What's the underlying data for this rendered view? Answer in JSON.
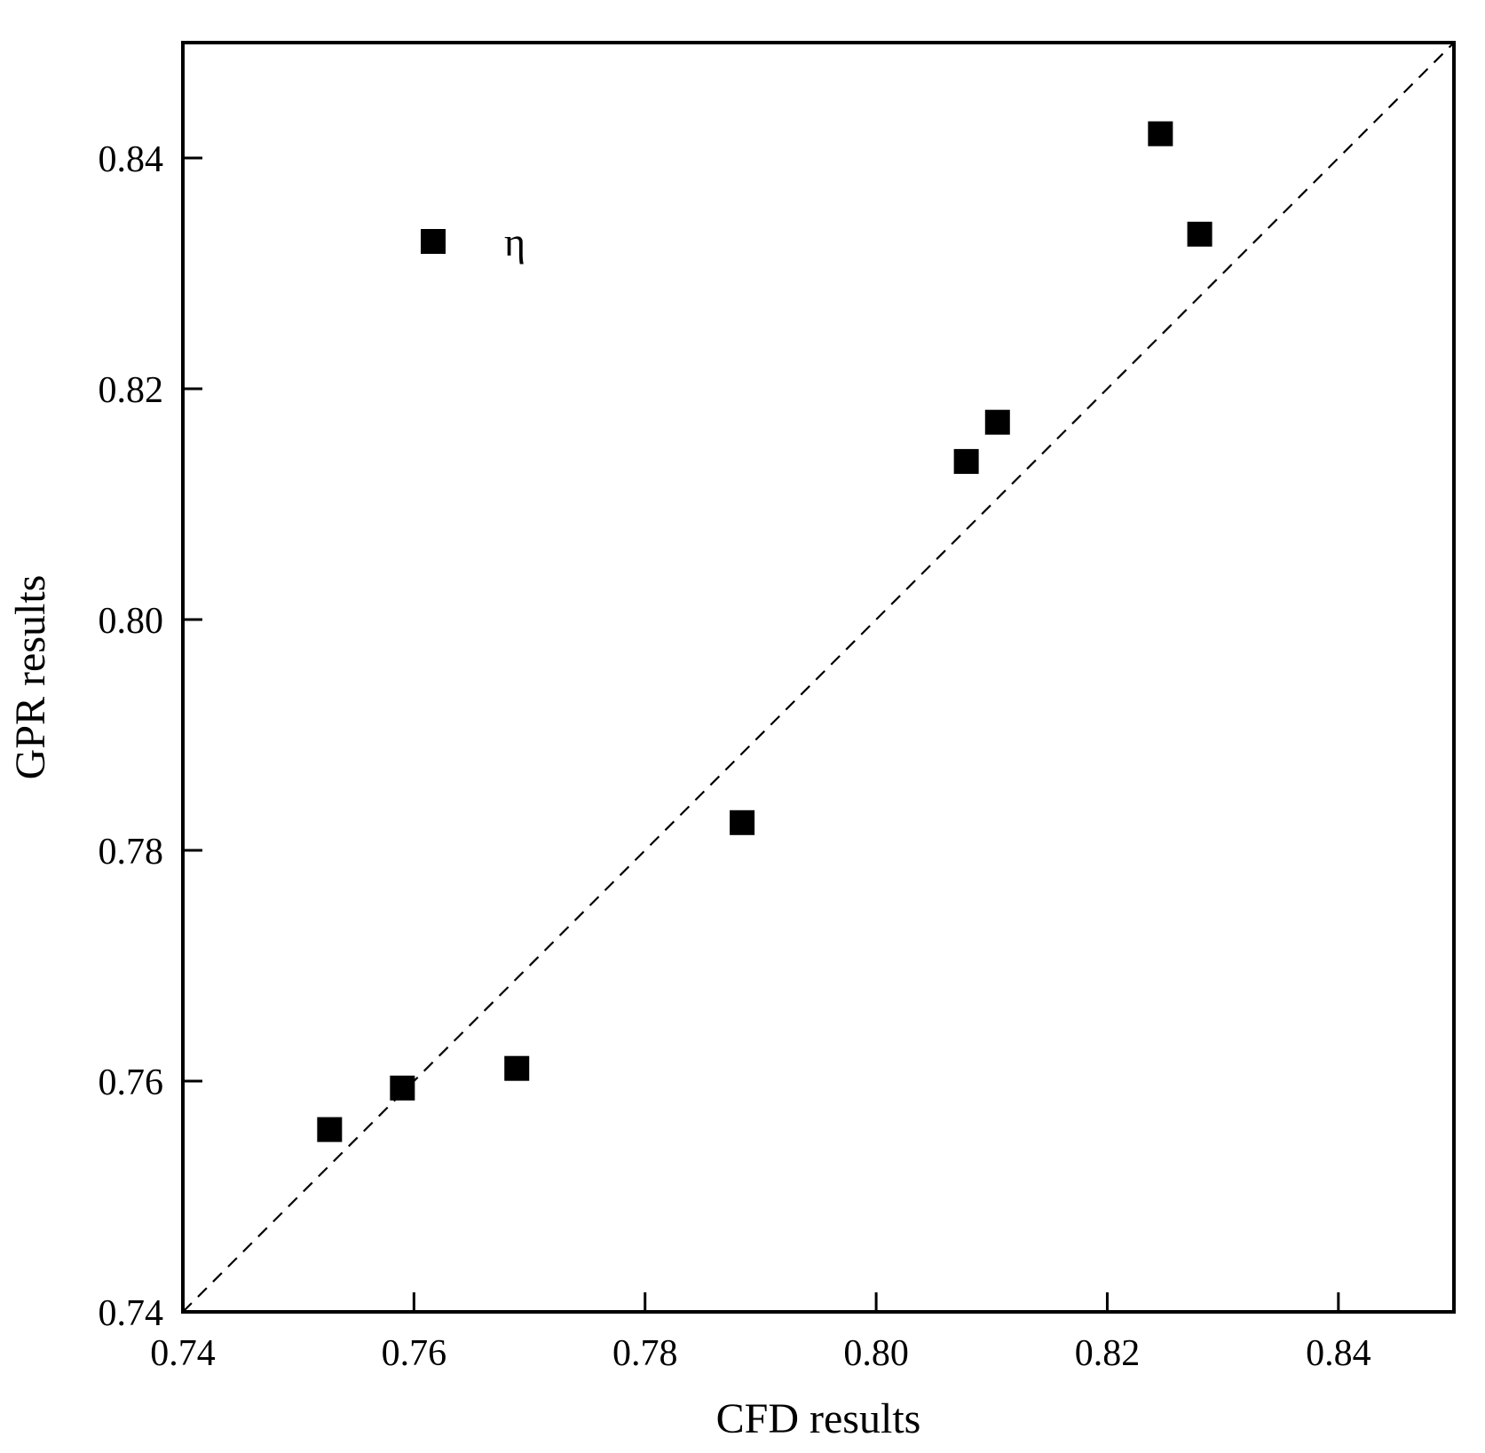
{
  "chart_data": {
    "type": "scatter",
    "title": "",
    "xlabel": "CFD results",
    "ylabel": "GPR results",
    "xlim": [
      0.74,
      0.85
    ],
    "ylim": [
      0.74,
      0.85
    ],
    "xticks": [
      "0.74",
      "0.76",
      "0.78",
      "0.80",
      "0.82",
      "0.84"
    ],
    "yticks": [
      "0.74",
      "0.76",
      "0.78",
      "0.80",
      "0.82",
      "0.84"
    ],
    "grid": false,
    "legend_position": "top-left",
    "reference_line": {
      "style": "dashed",
      "from": [
        0.74,
        0.74
      ],
      "to": [
        0.85,
        0.85
      ]
    },
    "series": [
      {
        "name": "η",
        "marker": "square",
        "color": "#000000",
        "points": [
          {
            "x": 0.7527,
            "y": 0.7558
          },
          {
            "x": 0.759,
            "y": 0.7594
          },
          {
            "x": 0.7689,
            "y": 0.7611
          },
          {
            "x": 0.7884,
            "y": 0.7824
          },
          {
            "x": 0.8078,
            "y": 0.8137
          },
          {
            "x": 0.8105,
            "y": 0.8171
          },
          {
            "x": 0.8246,
            "y": 0.8421
          },
          {
            "x": 0.828,
            "y": 0.8334
          }
        ]
      }
    ]
  }
}
